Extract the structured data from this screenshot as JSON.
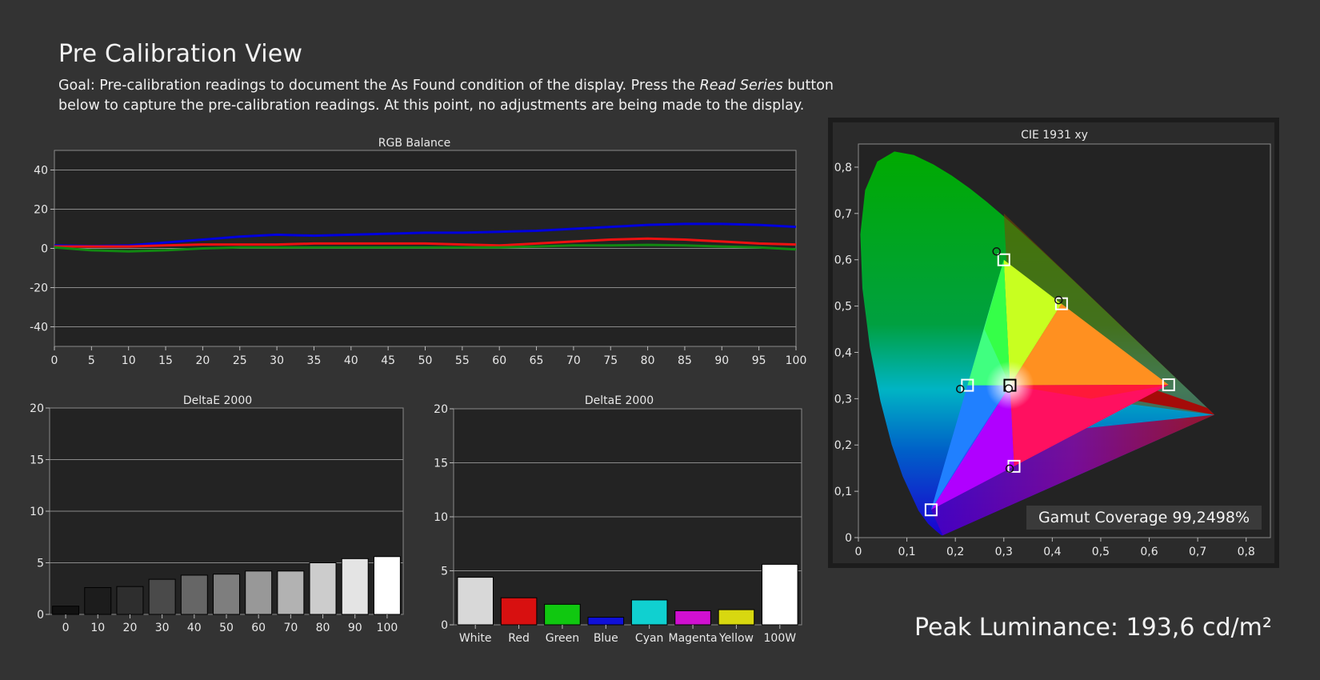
{
  "page": {
    "title": "Pre Calibration View",
    "goal_before": "Goal: Pre-calibration readings to document the As Found condition of the display. Press the ",
    "goal_emphasis": "Read Series",
    "goal_after": " button below to capture the pre-calibration readings. At this point, no adjustments are being made to the display.",
    "peak_luminance": "Peak Luminance: 193,6 cd/m²",
    "gamut_coverage": "Gamut Coverage 99,2498%"
  },
  "chart_data": [
    {
      "id": "rgb",
      "type": "line",
      "title": "RGB Balance",
      "x": [
        0,
        5,
        10,
        15,
        20,
        25,
        30,
        35,
        40,
        45,
        50,
        55,
        60,
        65,
        70,
        75,
        80,
        85,
        90,
        95,
        100
      ],
      "series": [
        {
          "color": "#0000dd",
          "values": [
            1.5,
            1.2,
            1.5,
            3,
            4.5,
            6,
            7,
            6.5,
            7,
            7.5,
            8,
            8,
            8.5,
            9,
            10,
            11,
            12,
            12.5,
            12.5,
            12,
            11
          ]
        },
        {
          "color": "#ee1111",
          "values": [
            1,
            1,
            1,
            1.5,
            2,
            2,
            2,
            2.5,
            2.5,
            2.5,
            2.5,
            2,
            1.5,
            2.5,
            3.5,
            4.5,
            5,
            4.5,
            3.5,
            2.5,
            2
          ]
        },
        {
          "color": "#118811",
          "values": [
            0.5,
            -1,
            -1.5,
            -1,
            0,
            0.5,
            0.5,
            0.5,
            0.5,
            0.5,
            0.5,
            0.5,
            0.5,
            1,
            1.5,
            1.5,
            1.8,
            1.5,
            1,
            0.5,
            -0.5
          ]
        }
      ],
      "ylim": [
        -50,
        50
      ],
      "yticks": [
        -40,
        -20,
        0,
        20,
        40
      ],
      "xticks": [
        0,
        5,
        10,
        15,
        20,
        25,
        30,
        35,
        40,
        45,
        50,
        55,
        60,
        65,
        70,
        75,
        80,
        85,
        90,
        95,
        100
      ],
      "grid": true
    },
    {
      "id": "grayscale",
      "type": "bar",
      "title": "DeltaE 2000",
      "categories": [
        "0",
        "10",
        "20",
        "30",
        "40",
        "50",
        "60",
        "70",
        "80",
        "90",
        "100"
      ],
      "values": [
        0.8,
        2.6,
        2.7,
        3.4,
        3.8,
        3.9,
        4.2,
        4.2,
        5.0,
        5.4,
        5.6
      ],
      "colors": [
        "#111111",
        "#1c1c1c",
        "#2e2e2e",
        "#4a4a4a",
        "#666666",
        "#7e7e7e",
        "#989898",
        "#b2b2b2",
        "#cccccc",
        "#e4e4e4",
        "#ffffff"
      ],
      "ylim": [
        0,
        20
      ],
      "yticks": [
        0,
        5,
        10,
        15,
        20
      ],
      "grid": true
    },
    {
      "id": "colors",
      "type": "bar",
      "title": "DeltaE 2000",
      "categories": [
        "White",
        "Red",
        "Green",
        "Blue",
        "Cyan",
        "Magenta",
        "Yellow",
        "100W"
      ],
      "values": [
        4.4,
        2.5,
        1.9,
        0.7,
        2.3,
        1.3,
        1.4,
        5.6
      ],
      "colors": [
        "#d8d8d8",
        "#d81010",
        "#10c810",
        "#1010d8",
        "#10d0d0",
        "#d010d0",
        "#d8d810",
        "#ffffff"
      ],
      "ylim": [
        0,
        20
      ],
      "yticks": [
        0,
        5,
        10,
        15,
        20
      ],
      "grid": true
    },
    {
      "id": "cie",
      "type": "scatter",
      "title": "CIE 1931 xy",
      "xlim": [
        0,
        0.85
      ],
      "ylim": [
        0,
        0.85
      ],
      "xticks": [
        "0",
        "0,1",
        "0,2",
        "0,3",
        "0,4",
        "0,5",
        "0,6",
        "0,7",
        "0,8"
      ],
      "yticks": [
        "0",
        "0,1",
        "0,2",
        "0,3",
        "0,4",
        "0,5",
        "0,6",
        "0,7",
        "0,8"
      ],
      "targets": [
        {
          "name": "red",
          "x": 0.64,
          "y": 0.33
        },
        {
          "name": "green",
          "x": 0.3,
          "y": 0.6
        },
        {
          "name": "blue",
          "x": 0.15,
          "y": 0.06
        },
        {
          "name": "cyan",
          "x": 0.225,
          "y": 0.329
        },
        {
          "name": "magenta",
          "x": 0.321,
          "y": 0.154
        },
        {
          "name": "yellow",
          "x": 0.419,
          "y": 0.505
        },
        {
          "name": "white",
          "x": 0.3127,
          "y": 0.329
        }
      ],
      "measured": [
        {
          "name": "green",
          "x": 0.285,
          "y": 0.618
        },
        {
          "name": "cyan",
          "x": 0.21,
          "y": 0.321
        },
        {
          "name": "magenta",
          "x": 0.312,
          "y": 0.149
        },
        {
          "name": "yellow",
          "x": 0.413,
          "y": 0.513
        },
        {
          "name": "white",
          "x": 0.31,
          "y": 0.322
        }
      ]
    }
  ]
}
